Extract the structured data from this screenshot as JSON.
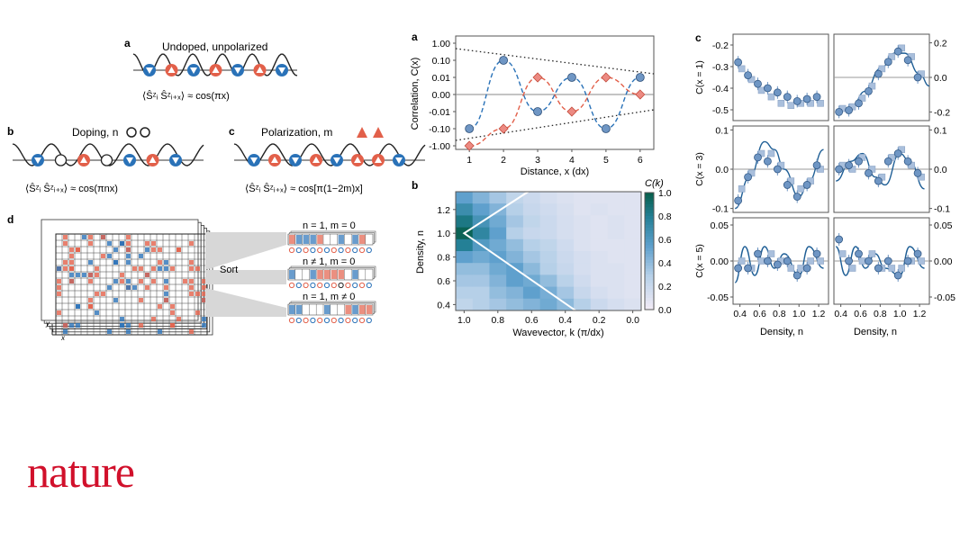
{
  "brand": "nature",
  "colors": {
    "blue": "#2a72b8",
    "red": "#e2604a",
    "tile_red": "#f08a82",
    "line_blue": "#1f5f96",
    "marker_fill": "#6f96c4",
    "marker_sq": "#a9bfdc",
    "heat_dark": "#0b6b55",
    "brand": "#d1102b"
  },
  "left": {
    "a": {
      "letter": "a",
      "title": "Undoped, unpolarized",
      "formula": "⟨Ŝᶻᵢ Ŝᶻᵢ₊ₓ⟩ ≈ cos(πx)"
    },
    "b": {
      "letter": "b",
      "title": "Doping, n",
      "formula": "⟨Ŝᶻᵢ Ŝᶻᵢ₊ₓ⟩ ≈ cos(πnx)"
    },
    "c": {
      "letter": "c",
      "title": "Polarization, m",
      "formula": "⟨Ŝᶻᵢ Ŝᶻᵢ₊ₓ⟩ ≈ cos[π(1−2m)x]"
    },
    "d": {
      "letter": "d",
      "sort_label": "Sort",
      "rows": [
        "n = 1, m = 0",
        "n ≠ 1, m = 0",
        "n = 1, m ≠ 0"
      ],
      "axis_y": "y",
      "axis_x": "x"
    }
  },
  "chart_data": [
    {
      "id": "middle-a",
      "letter": "a",
      "type": "line",
      "xlabel": "Distance, x (dx)",
      "ylabel": "Correlation, C(x)",
      "x_ticks": [
        1,
        2,
        3,
        4,
        5,
        6
      ],
      "y_ticks": [
        "1.00",
        "0.10",
        "0.01",
        "0.00",
        "-0.01",
        "-0.10",
        "-1.00"
      ],
      "series": [
        {
          "marker": "circle",
          "color": "#2a72b8",
          "x": [
            1,
            2,
            3,
            4,
            5,
            6
          ],
          "y": [
            "-0.10",
            "0.10",
            "-0.01",
            "0.01",
            "-0.10",
            "0.01"
          ]
        },
        {
          "marker": "diamond",
          "color": "#e2604a",
          "x": [
            1,
            2,
            3,
            4,
            5,
            6
          ],
          "y": [
            "-1.00",
            "-0.10",
            "0.01",
            "-0.01",
            "0.01",
            "0.00"
          ]
        }
      ],
      "envelope": "dotted"
    },
    {
      "id": "middle-b",
      "letter": "b",
      "type": "heatmap",
      "xlabel": "Wavevector, k (π/dx)",
      "ylabel": "Density, n",
      "x_ticks": [
        "1.0",
        "0.8",
        "0.6",
        "0.4",
        "0.2",
        "0.0"
      ],
      "y_ticks": [
        "1.2",
        "1.0",
        "0.8",
        "0.6",
        "0.4"
      ],
      "colorbar_label": "C(k)",
      "colorbar_ticks": [
        "1.0",
        "0.8",
        "0.6",
        "0.4",
        "0.2",
        "0.0"
      ],
      "rows_density": [
        1.3,
        1.2,
        1.1,
        1.0,
        0.9,
        0.8,
        0.7,
        0.6,
        0.5,
        0.4
      ],
      "cols_k": [
        1.0,
        0.9,
        0.8,
        0.7,
        0.6,
        0.5,
        0.4,
        0.3,
        0.2,
        0.1,
        0.0
      ],
      "values": [
        [
          0.55,
          0.45,
          0.35,
          0.25,
          0.2,
          0.15,
          0.12,
          0.1,
          0.1,
          0.1,
          0.1
        ],
        [
          0.7,
          0.55,
          0.45,
          0.3,
          0.22,
          0.18,
          0.14,
          0.1,
          0.12,
          0.1,
          0.1
        ],
        [
          0.85,
          0.65,
          0.5,
          0.35,
          0.25,
          0.2,
          0.15,
          0.12,
          0.1,
          0.12,
          0.1
        ],
        [
          0.98,
          0.75,
          0.55,
          0.3,
          0.22,
          0.2,
          0.15,
          0.12,
          0.1,
          0.12,
          0.1
        ],
        [
          0.8,
          0.6,
          0.5,
          0.4,
          0.3,
          0.25,
          0.18,
          0.12,
          0.1,
          0.1,
          0.1
        ],
        [
          0.55,
          0.5,
          0.55,
          0.45,
          0.35,
          0.28,
          0.2,
          0.15,
          0.12,
          0.1,
          0.1
        ],
        [
          0.4,
          0.4,
          0.5,
          0.55,
          0.42,
          0.3,
          0.22,
          0.15,
          0.12,
          0.12,
          0.1
        ],
        [
          0.35,
          0.35,
          0.45,
          0.55,
          0.5,
          0.4,
          0.28,
          0.18,
          0.12,
          0.12,
          0.1
        ],
        [
          0.3,
          0.3,
          0.4,
          0.45,
          0.55,
          0.48,
          0.35,
          0.22,
          0.15,
          0.12,
          0.1
        ],
        [
          0.25,
          0.3,
          0.35,
          0.4,
          0.45,
          0.5,
          0.42,
          0.3,
          0.2,
          0.15,
          0.12
        ]
      ]
    },
    {
      "id": "right-c",
      "letter": "c",
      "type": "scatter",
      "xlabel": "Density, n",
      "x_ticks": [
        "0.4",
        "0.6",
        "0.8",
        "1.0",
        "1.2"
      ],
      "panels": [
        {
          "row": 0,
          "col": 0,
          "ylabel": "C(x = 1)",
          "y_ticks": [
            "-0.2",
            "-0.3",
            "-0.4",
            "-0.5"
          ],
          "ylim": [
            -0.55,
            -0.15
          ],
          "circles": [
            [
              0.4,
              -0.28
            ],
            [
              0.5,
              -0.34
            ],
            [
              0.6,
              -0.38
            ],
            [
              0.7,
              -0.4
            ],
            [
              0.8,
              -0.42
            ],
            [
              0.9,
              -0.44
            ],
            [
              1.0,
              -0.46
            ],
            [
              1.1,
              -0.45
            ],
            [
              1.2,
              -0.44
            ]
          ],
          "squares": [
            [
              0.4,
              -0.31
            ],
            [
              0.5,
              -0.36
            ],
            [
              0.6,
              -0.41
            ],
            [
              0.7,
              -0.44
            ],
            [
              0.8,
              -0.47
            ],
            [
              0.9,
              -0.48
            ],
            [
              1.0,
              -0.47
            ],
            [
              1.1,
              -0.47
            ],
            [
              1.2,
              -0.47
            ]
          ]
        },
        {
          "row": 0,
          "col": 1,
          "y_ticks": [
            "0.2",
            "0.0",
            "-0.2"
          ],
          "ylim": [
            -0.25,
            0.25
          ],
          "circles": [
            [
              0.4,
              -0.2
            ],
            [
              0.5,
              -0.19
            ],
            [
              0.6,
              -0.15
            ],
            [
              0.7,
              -0.08
            ],
            [
              0.8,
              0.02
            ],
            [
              0.9,
              0.09
            ],
            [
              1.0,
              0.15
            ],
            [
              1.1,
              0.1
            ],
            [
              1.2,
              0.0
            ]
          ],
          "squares": [
            [
              0.4,
              -0.18
            ],
            [
              0.5,
              -0.17
            ],
            [
              0.6,
              -0.12
            ],
            [
              0.7,
              -0.05
            ],
            [
              0.8,
              0.05
            ],
            [
              0.9,
              0.12
            ],
            [
              1.0,
              0.17
            ],
            [
              1.1,
              0.12
            ],
            [
              1.2,
              0.02
            ]
          ],
          "curve": [
            [
              0.35,
              -0.2
            ],
            [
              0.5,
              -0.18
            ],
            [
              0.65,
              -0.08
            ],
            [
              0.8,
              0.05
            ],
            [
              0.95,
              0.14
            ],
            [
              1.05,
              0.14
            ],
            [
              1.2,
              0.02
            ],
            [
              1.3,
              -0.05
            ]
          ]
        },
        {
          "row": 1,
          "col": 0,
          "ylabel": "C(x = 3)",
          "y_ticks": [
            "0.1",
            "0.0",
            "-0.1"
          ],
          "ylim": [
            -0.11,
            0.11
          ],
          "circles": [
            [
              0.4,
              -0.08
            ],
            [
              0.5,
              -0.02
            ],
            [
              0.6,
              0.03
            ],
            [
              0.7,
              0.02
            ],
            [
              0.8,
              0.0
            ],
            [
              0.9,
              -0.04
            ],
            [
              1.0,
              -0.07
            ],
            [
              1.1,
              -0.04
            ],
            [
              1.2,
              0.01
            ]
          ],
          "squares": [
            [
              0.4,
              -0.05
            ],
            [
              0.5,
              -0.01
            ],
            [
              0.6,
              0.04
            ],
            [
              0.7,
              0.04
            ],
            [
              0.8,
              0.01
            ],
            [
              0.9,
              -0.03
            ],
            [
              1.0,
              -0.05
            ],
            [
              1.1,
              -0.03
            ],
            [
              1.2,
              0.0
            ]
          ],
          "curve": [
            [
              0.35,
              -0.1
            ],
            [
              0.5,
              -0.02
            ],
            [
              0.65,
              0.07
            ],
            [
              0.75,
              0.05
            ],
            [
              0.85,
              0.0
            ],
            [
              1.0,
              -0.07
            ],
            [
              1.1,
              -0.03
            ],
            [
              1.25,
              0.05
            ]
          ]
        },
        {
          "row": 1,
          "col": 1,
          "y_ticks": [
            "0.1",
            "0.0",
            "-0.1"
          ],
          "ylim": [
            -0.11,
            0.11
          ],
          "circles": [
            [
              0.4,
              0.0
            ],
            [
              0.5,
              0.01
            ],
            [
              0.6,
              0.02
            ],
            [
              0.7,
              -0.01
            ],
            [
              0.8,
              -0.03
            ],
            [
              0.9,
              0.02
            ],
            [
              1.0,
              0.04
            ],
            [
              1.1,
              0.02
            ],
            [
              1.2,
              -0.01
            ]
          ],
          "squares": [
            [
              0.4,
              0.01
            ],
            [
              0.5,
              0.0
            ],
            [
              0.6,
              0.03
            ],
            [
              0.7,
              0.0
            ],
            [
              0.8,
              -0.02
            ],
            [
              0.9,
              0.03
            ],
            [
              1.0,
              0.05
            ],
            [
              1.1,
              0.01
            ],
            [
              1.2,
              -0.02
            ]
          ],
          "curve": [
            [
              0.35,
              -0.03
            ],
            [
              0.5,
              0.02
            ],
            [
              0.62,
              0.04
            ],
            [
              0.75,
              -0.02
            ],
            [
              0.85,
              -0.04
            ],
            [
              1.0,
              0.04
            ],
            [
              1.1,
              0.02
            ],
            [
              1.25,
              -0.05
            ]
          ]
        },
        {
          "row": 2,
          "col": 0,
          "ylabel": "C(x = 5)",
          "y_ticks": [
            "0.05",
            "0.00",
            "-0.05"
          ],
          "ylim": [
            -0.06,
            0.06
          ],
          "circles": [
            [
              0.4,
              -0.01
            ],
            [
              0.5,
              -0.01
            ],
            [
              0.6,
              0.01
            ],
            [
              0.7,
              0.0
            ],
            [
              0.8,
              -0.005
            ],
            [
              0.9,
              0.0
            ],
            [
              1.0,
              -0.02
            ],
            [
              1.1,
              -0.01
            ],
            [
              1.2,
              0.01
            ]
          ],
          "squares": [
            [
              0.4,
              0.0
            ],
            [
              0.5,
              -0.01
            ],
            [
              0.6,
              0.0
            ],
            [
              0.7,
              0.01
            ],
            [
              0.8,
              0.0
            ],
            [
              0.9,
              -0.01
            ],
            [
              1.0,
              -0.01
            ],
            [
              1.1,
              0.0
            ],
            [
              1.2,
              0.0
            ]
          ],
          "curve": [
            [
              0.35,
              -0.03
            ],
            [
              0.45,
              0.02
            ],
            [
              0.55,
              -0.02
            ],
            [
              0.65,
              0.02
            ],
            [
              0.75,
              -0.01
            ],
            [
              0.85,
              0.01
            ],
            [
              1.0,
              -0.02
            ],
            [
              1.1,
              0.02
            ],
            [
              1.25,
              -0.01
            ]
          ]
        },
        {
          "row": 2,
          "col": 1,
          "y_ticks": [
            "0.05",
            "0.00",
            "-0.05"
          ],
          "ylim": [
            -0.06,
            0.06
          ],
          "circles": [
            [
              0.4,
              0.03
            ],
            [
              0.5,
              0.0
            ],
            [
              0.6,
              0.01
            ],
            [
              0.7,
              0.0
            ],
            [
              0.8,
              -0.01
            ],
            [
              0.9,
              0.0
            ],
            [
              1.0,
              -0.02
            ],
            [
              1.1,
              0.0
            ],
            [
              1.2,
              0.01
            ]
          ],
          "squares": [
            [
              0.4,
              0.01
            ],
            [
              0.5,
              -0.01
            ],
            [
              0.6,
              0.0
            ],
            [
              0.7,
              0.01
            ],
            [
              0.8,
              -0.01
            ],
            [
              0.9,
              -0.01
            ],
            [
              1.0,
              -0.01
            ],
            [
              1.1,
              0.0
            ],
            [
              1.2,
              0.0
            ]
          ],
          "curve": [
            [
              0.35,
              0.02
            ],
            [
              0.45,
              -0.02
            ],
            [
              0.55,
              0.02
            ],
            [
              0.65,
              -0.01
            ],
            [
              0.75,
              0.01
            ],
            [
              0.85,
              -0.01
            ],
            [
              1.0,
              -0.02
            ],
            [
              1.1,
              0.02
            ],
            [
              1.25,
              -0.01
            ]
          ]
        }
      ]
    }
  ]
}
